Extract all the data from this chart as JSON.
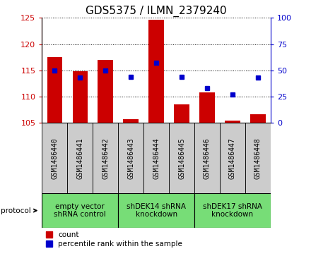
{
  "title": "GDS5375 / ILMN_2379240",
  "samples": [
    "GSM1486440",
    "GSM1486441",
    "GSM1486442",
    "GSM1486443",
    "GSM1486444",
    "GSM1486445",
    "GSM1486446",
    "GSM1486447",
    "GSM1486448"
  ],
  "count_values": [
    117.5,
    114.8,
    117.0,
    105.7,
    124.7,
    108.5,
    110.8,
    105.5,
    106.7
  ],
  "count_base": 105.0,
  "percentile_values": [
    50,
    43,
    50,
    44,
    57,
    44,
    33,
    27,
    43
  ],
  "ylim_left": [
    105,
    125
  ],
  "ylim_right": [
    0,
    100
  ],
  "yticks_left": [
    105,
    110,
    115,
    120,
    125
  ],
  "yticks_right": [
    0,
    25,
    50,
    75,
    100
  ],
  "bar_color": "#CC0000",
  "dot_color": "#0000CC",
  "plot_bg": "#FFFFFF",
  "sample_box_color": "#CCCCCC",
  "group_box_color": "#77DD77",
  "protocol_groups": [
    {
      "label": "empty vector\nshRNA control",
      "start": 0,
      "end": 3
    },
    {
      "label": "shDEK14 shRNA\nknockdown",
      "start": 3,
      "end": 6
    },
    {
      "label": "shDEK17 shRNA\nknockdown",
      "start": 6,
      "end": 9
    }
  ],
  "legend_count_label": "count",
  "legend_pct_label": "percentile rank within the sample",
  "title_fontsize": 11,
  "axis_tick_fontsize": 8,
  "sample_fontsize": 7,
  "group_fontsize": 7.5,
  "legend_fontsize": 7.5,
  "protocol_label": "protocol"
}
